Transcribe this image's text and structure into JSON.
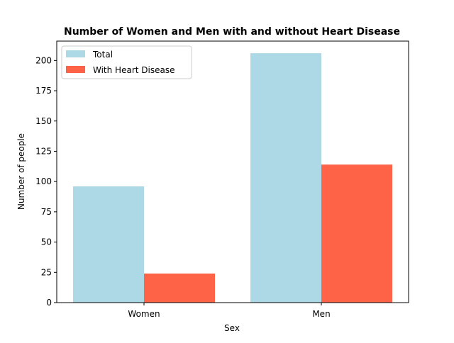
{
  "chart_data": {
    "type": "bar",
    "title": "Number of Women and Men with and without Heart Disease",
    "xlabel": "Sex",
    "ylabel": "Number of people",
    "categories": [
      "Women",
      "Men"
    ],
    "series": [
      {
        "name": "Total",
        "values": [
          96,
          206
        ],
        "color": "#add8e6"
      },
      {
        "name": "With Heart Disease",
        "values": [
          24,
          114
        ],
        "color": "#ff6347"
      }
    ],
    "ylim": [
      0,
      216
    ],
    "yticks": [
      0,
      25,
      50,
      75,
      100,
      125,
      150,
      175,
      200
    ],
    "grid": false,
    "legend_position": "top-left"
  }
}
